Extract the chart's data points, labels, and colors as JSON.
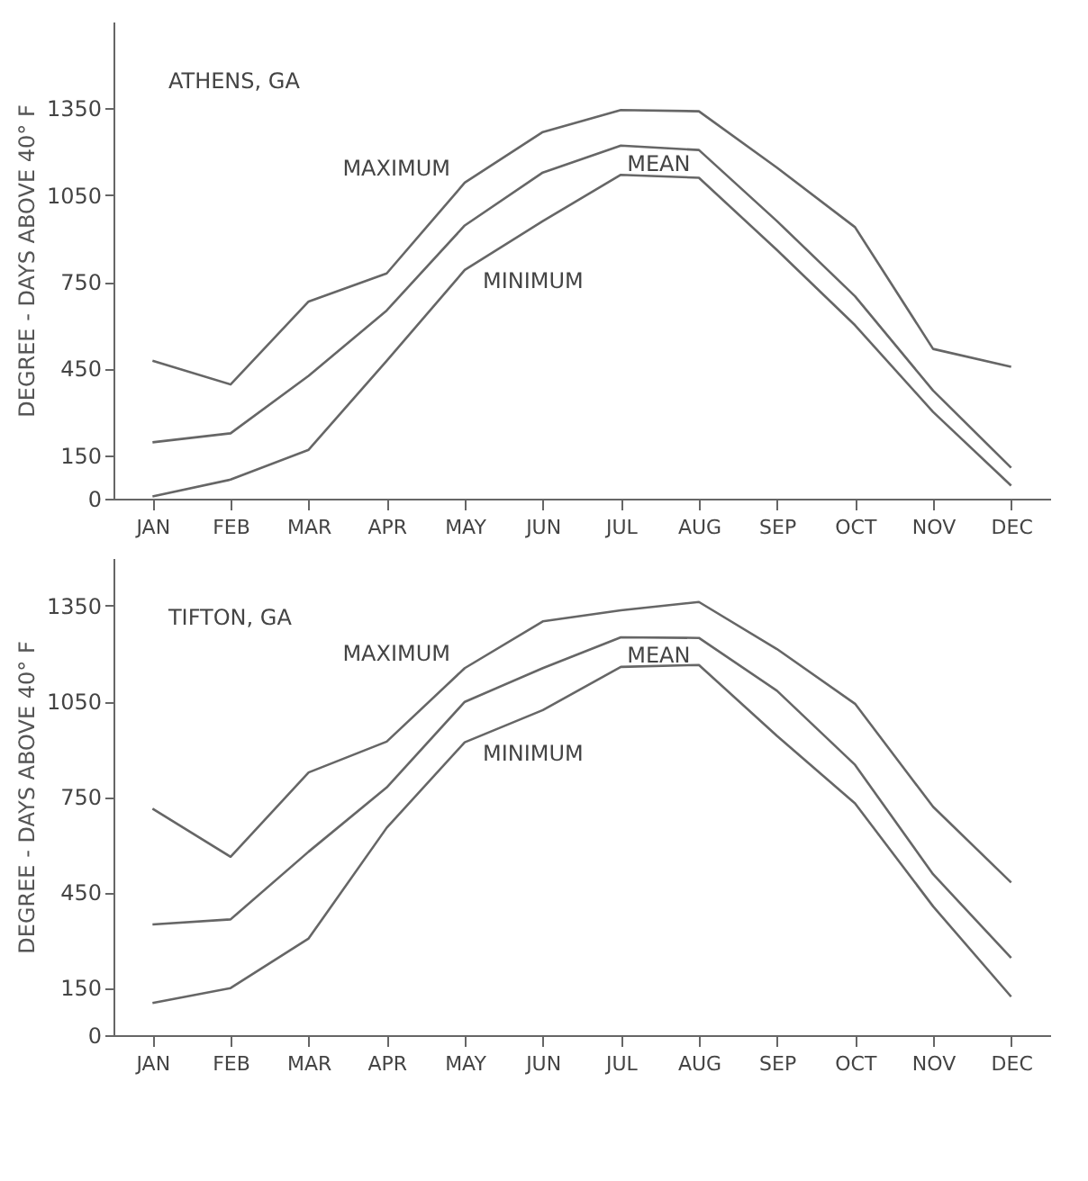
{
  "chart_data": [
    {
      "type": "line",
      "title": "ATHENS, GA",
      "ylabel": "DEGREE - DAYS ABOVE 40° F",
      "categories": [
        "JAN",
        "FEB",
        "MAR",
        "APR",
        "MAY",
        "JUN",
        "JUL",
        "AUG",
        "SEP",
        "OCT",
        "NOV",
        "DEC"
      ],
      "ylim": [
        0,
        1650
      ],
      "yticks": [
        0,
        150,
        450,
        750,
        1050,
        1350
      ],
      "grid": false,
      "legend": false,
      "marker": "none",
      "line_style": "solid",
      "series": [
        {
          "name": "MAXIMUM",
          "color": "#666666",
          "values": [
            477,
            395,
            682,
            779,
            1093,
            1268,
            1344,
            1340,
            1145,
            939,
            518,
            456
          ]
        },
        {
          "name": "MEAN",
          "color": "#666666",
          "values": [
            195,
            226,
            425,
            651,
            945,
            1128,
            1221,
            1206,
            960,
            700,
            374,
            107
          ]
        },
        {
          "name": "MINIMUM",
          "color": "#666666",
          "values": [
            8,
            66,
            169,
            477,
            791,
            960,
            1120,
            1110,
            860,
            600,
            300,
            45
          ]
        }
      ]
    },
    {
      "type": "line",
      "title": "TIFTON, GA",
      "ylabel": "DEGREE - DAYS ABOVE 40° F",
      "categories": [
        "JAN",
        "FEB",
        "MAR",
        "APR",
        "MAY",
        "JUN",
        "JUL",
        "AUG",
        "SEP",
        "OCT",
        "NOV",
        "DEC"
      ],
      "ylim": [
        0,
        1500
      ],
      "yticks": [
        0,
        150,
        450,
        750,
        1050,
        1350
      ],
      "grid": false,
      "legend": false,
      "marker": "none",
      "line_style": "solid",
      "series": [
        {
          "name": "MAXIMUM",
          "color": "#666666",
          "values": [
            712,
            561,
            826,
            923,
            1154,
            1301,
            1336,
            1362,
            1214,
            1042,
            718,
            480
          ]
        },
        {
          "name": "MEAN",
          "color": "#666666",
          "values": [
            348,
            364,
            577,
            779,
            1048,
            1154,
            1251,
            1249,
            1083,
            850,
            506,
            243
          ]
        },
        {
          "name": "MINIMUM",
          "color": "#666666",
          "values": [
            101,
            148,
            304,
            652,
            921,
            1022,
            1158,
            1164,
            941,
            729,
            405,
            121
          ]
        }
      ]
    }
  ]
}
